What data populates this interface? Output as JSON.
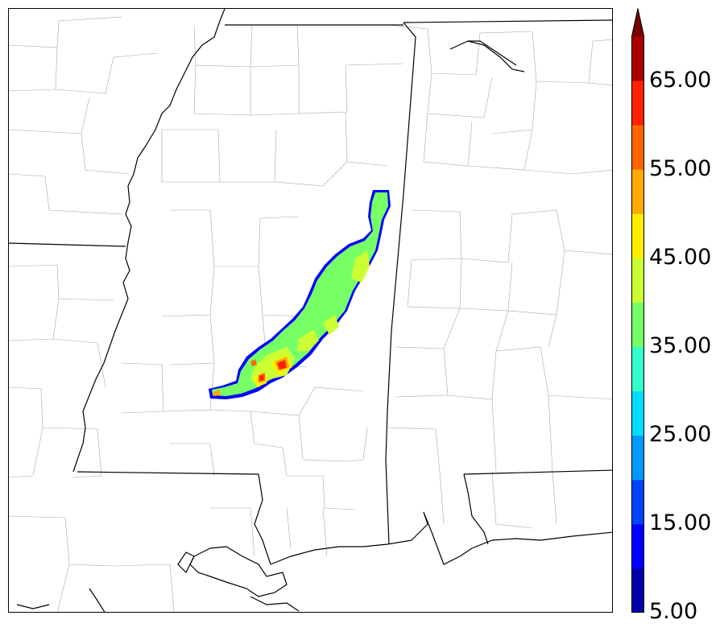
{
  "colorbar": {
    "labels": [
      "5.00",
      "15.00",
      "25.00",
      "35.00",
      "45.00",
      "55.00",
      "65.00"
    ],
    "colors": [
      "#0000aa",
      "#0000ff",
      "#0044ff",
      "#0099ff",
      "#00ddff",
      "#33ffcc",
      "#77ff66",
      "#ccff33",
      "#ffee00",
      "#ffaa00",
      "#ff6600",
      "#ff2200",
      "#aa0000",
      "#770000"
    ],
    "extend": "max"
  },
  "map": {
    "background": "#ffffff",
    "state_border_color": "#000000",
    "county_border_color": "#a0a0a0"
  }
}
